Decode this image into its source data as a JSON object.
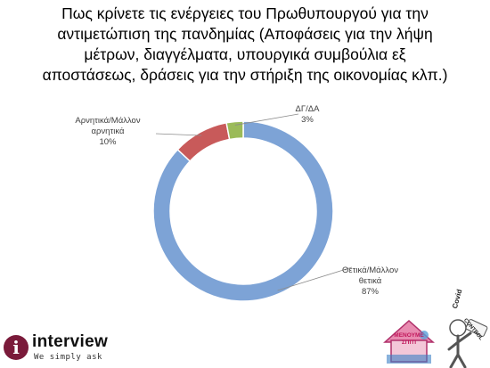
{
  "title_lines": [
    "Πως κρίνετε τις ενέργειες του Πρωθυπουργού για την",
    "αντιμετώπιση της πανδημίας (Αποφάσεις για την λήψη",
    "μέτρων, διαγγέλματα, υπουργικά συμβούλια εξ",
    "αποστάσεως, δράσεις για την στήριξη της οικονομίας κλπ.)"
  ],
  "chart_data": {
    "type": "pie",
    "variant": "donut",
    "categories": [
      "Θετικά/Μάλλον θετικά",
      "Αρνητικά/Μάλλον αρνητικά",
      "ΔΓ/ΔΑ"
    ],
    "values": [
      87,
      10,
      3
    ],
    "colors": [
      "#7da3d6",
      "#c85a5a",
      "#9bbb59"
    ],
    "labels": [
      {
        "lines": [
          "Θετικά/Μάλλον",
          "θετικά",
          "87%"
        ]
      },
      {
        "lines": [
          "Αρνητικά/Μάλλον",
          "αρνητικά",
          "10%"
        ]
      },
      {
        "lines": [
          "ΔΓ/ΔΑ",
          "3%"
        ]
      }
    ]
  },
  "branding": {
    "interview_name": "interview",
    "interview_tagline": "We simply ask",
    "interview_badge_letter": "i",
    "menoume_text": [
      "ΜΕΝΟΥΜΕ",
      "ΣΠΙΤΙ"
    ],
    "covid_text": "Covid",
    "control_text": "CONTROL",
    "brand_color": "#7a1a3a"
  }
}
